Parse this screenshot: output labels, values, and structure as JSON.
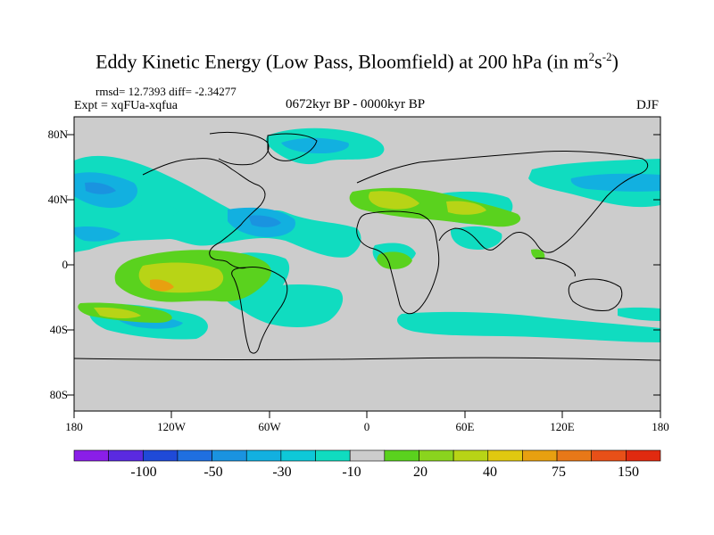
{
  "title": {
    "main": "Eddy Kinetic Energy (Low Pass, Bloomfield) at 200 hPa (in m",
    "sup1": "2",
    "mid": "s",
    "sup2": "-2",
    "end": ")"
  },
  "stats": "rmsd= 12.7393  diff= -2.34277",
  "experiment": "Expt = xqFUa-xqfua",
  "period": "0672kyr BP - 0000kyr BP",
  "season": "DJF",
  "lat_labels": [
    "80N",
    "40N",
    "0",
    "40S",
    "80S"
  ],
  "lon_labels": [
    "180",
    "120W",
    "60W",
    "0",
    "60E",
    "120E",
    "180"
  ],
  "colorbar": {
    "labels": [
      "-100",
      "-50",
      "-30",
      "-10",
      "20",
      "40",
      "75",
      "150"
    ],
    "colors": [
      "#8a1ee8",
      "#5a2ae0",
      "#1f4ad8",
      "#1f6fe0",
      "#1a93e0",
      "#12b0e0",
      "#0ec8d8",
      "#10dcc0",
      "#cccccc",
      "#5ad21e",
      "#8ad41e",
      "#b8d416",
      "#e0c810",
      "#e8a010",
      "#e87818",
      "#e85018",
      "#e02a10"
    ]
  },
  "colors": {
    "land_ocean_background": "#cccccc",
    "coastline": "#000000"
  }
}
